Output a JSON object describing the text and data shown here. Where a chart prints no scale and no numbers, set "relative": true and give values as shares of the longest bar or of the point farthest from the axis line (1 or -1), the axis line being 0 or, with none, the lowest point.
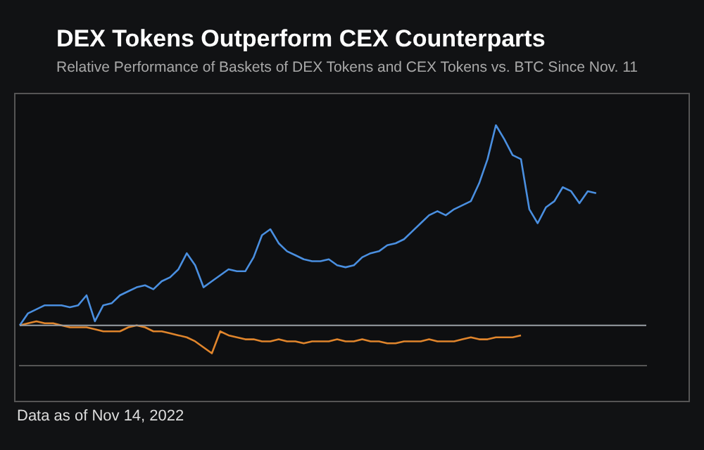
{
  "chart_data": {
    "type": "line",
    "title": "DEX Tokens Outperform CEX Counterparts",
    "subtitle": "Relative Performance of Baskets of DEX Tokens and CEX Tokens vs. BTC Since Nov. 11",
    "relative": true,
    "marker": "none",
    "legend": false,
    "grid": false,
    "categories": [
      null,
      null,
      null,
      null,
      null,
      null,
      null,
      null,
      null,
      null,
      null,
      null,
      null,
      null,
      null,
      null,
      null,
      null,
      null,
      null,
      null,
      null,
      null,
      null,
      null,
      null,
      null,
      null,
      null,
      null,
      null,
      null,
      null,
      null,
      null,
      null,
      null,
      null,
      null,
      null,
      null,
      null,
      null,
      null,
      null,
      null,
      null,
      null,
      null,
      null,
      null,
      null,
      null,
      null,
      null,
      null,
      null,
      null,
      null,
      null,
      null,
      null,
      null,
      null,
      null,
      null,
      null,
      null,
      null,
      null,
      null,
      null,
      null,
      null,
      null,
      null
    ],
    "series": [
      {
        "color": "#4a8fe0",
        "values": [
          0,
          0.06,
          0.08,
          0.1,
          0.1,
          0.1,
          0.09,
          0.1,
          0.15,
          0.02,
          0.1,
          0.11,
          0.15,
          0.17,
          0.19,
          0.2,
          0.18,
          0.22,
          0.24,
          0.28,
          0.36,
          0.3,
          0.19,
          0.22,
          0.25,
          0.28,
          0.27,
          0.27,
          0.34,
          0.45,
          0.48,
          0.41,
          0.37,
          0.35,
          0.33,
          0.32,
          0.32,
          0.33,
          0.3,
          0.29,
          0.3,
          0.34,
          0.36,
          0.37,
          0.4,
          0.41,
          0.43,
          0.47,
          0.51,
          0.55,
          0.57,
          0.55,
          0.58,
          0.6,
          0.62,
          0.71,
          0.83,
          1,
          0.93,
          0.85,
          0.83,
          0.58,
          0.51,
          0.59,
          0.62,
          0.69,
          0.67,
          0.61,
          0.67,
          0.66,
          null,
          null,
          null,
          null,
          null,
          null
        ]
      },
      {
        "color": "#e0852c",
        "values": [
          0,
          0.01,
          0.02,
          0.01,
          0.01,
          0,
          -0.01,
          -0.01,
          -0.01,
          -0.02,
          -0.03,
          -0.03,
          -0.03,
          -0.01,
          0,
          -0.01,
          -0.03,
          -0.03,
          -0.04,
          -0.05,
          -0.06,
          -0.08,
          -0.11,
          -0.14,
          -0.03,
          -0.05,
          -0.06,
          -0.07,
          -0.07,
          -0.08,
          -0.08,
          -0.07,
          -0.08,
          -0.08,
          -0.09,
          -0.08,
          -0.08,
          -0.08,
          -0.07,
          -0.08,
          -0.08,
          -0.07,
          -0.08,
          -0.08,
          -0.09,
          -0.09,
          -0.08,
          -0.08,
          -0.08,
          -0.07,
          -0.08,
          -0.08,
          -0.08,
          -0.07,
          -0.06,
          -0.07,
          -0.07,
          -0.06,
          -0.06,
          -0.06,
          -0.05,
          null,
          null,
          null,
          null,
          null,
          null,
          null,
          null,
          null,
          null,
          null,
          null,
          null,
          null,
          null
        ]
      }
    ],
    "annotations": [
      "Data as of Nov 14, 2022"
    ]
  }
}
